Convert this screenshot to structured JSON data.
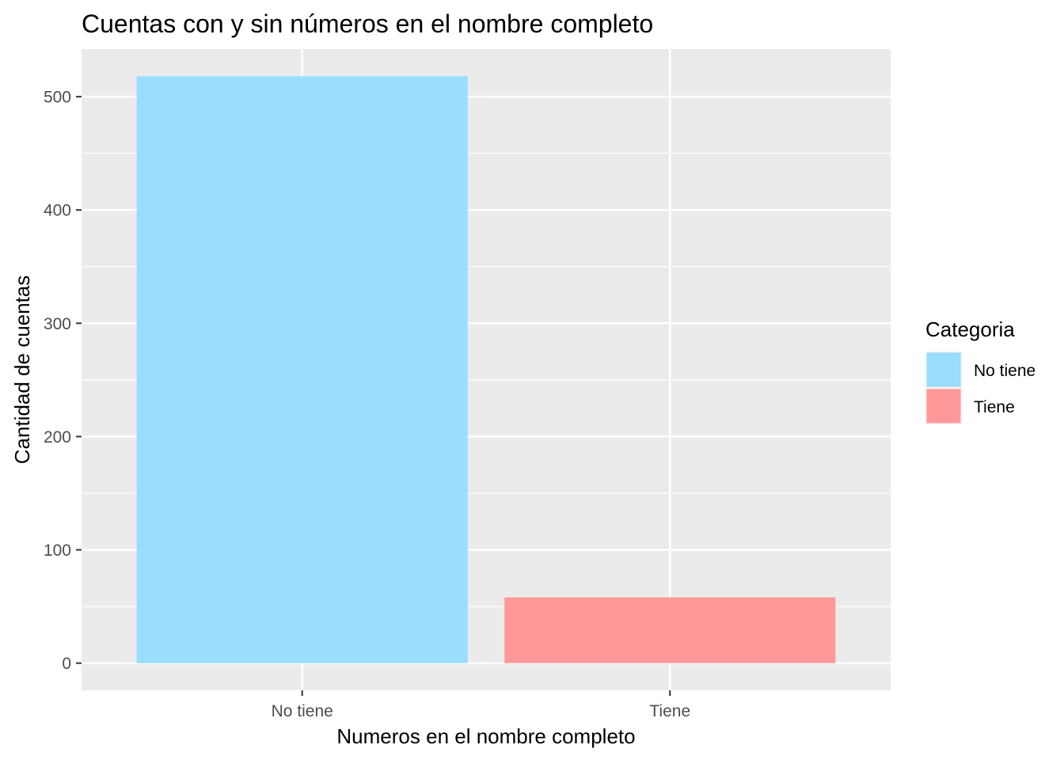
{
  "chart_data": {
    "type": "bar",
    "title": "Cuentas con y sin números en el nombre completo",
    "xlabel": "Numeros en el nombre completo",
    "ylabel": "Cantidad de cuentas",
    "categories": [
      "No tiene",
      "Tiene"
    ],
    "values": [
      518,
      58
    ],
    "colors": [
      "#99DDFF",
      "#FF9999"
    ],
    "ylim": [
      -24,
      542
    ],
    "yticks": [
      0,
      100,
      200,
      300,
      400,
      500
    ],
    "ytick_labels": [
      "0",
      "100",
      "200",
      "300",
      "400",
      "500"
    ],
    "grid": true,
    "panel_background": "#EBEBEB",
    "legend": {
      "title": "Categoria",
      "placement": "right",
      "entries": [
        {
          "label": "No tiene",
          "color": "#99DDFF"
        },
        {
          "label": "Tiene",
          "color": "#FF9999"
        }
      ]
    }
  }
}
